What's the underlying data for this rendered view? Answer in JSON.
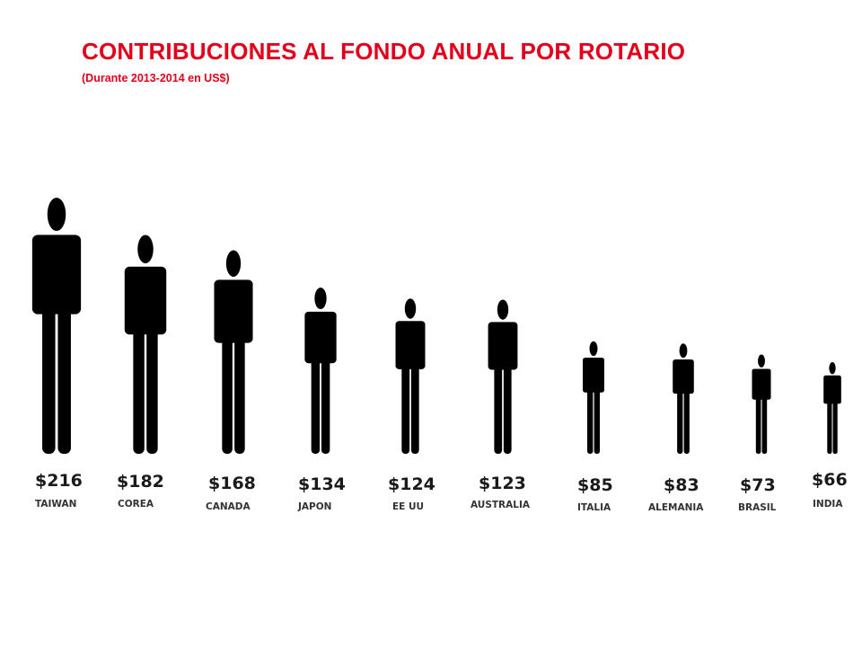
{
  "header": {
    "title": "CONTRIBUCIONES AL FONDO ANUAL POR ROTARIO",
    "subtitle": "(Durante 2013-2014 en US$)"
  },
  "colors": {
    "title": "#e3001b",
    "figure": "#000000",
    "label": "#1a1a1a"
  },
  "chart_data": {
    "type": "bar",
    "mark": "person-pictogram",
    "title": "CONTRIBUCIONES AL FONDO ANUAL POR ROTARIO",
    "subtitle": "(Durante 2013-2014 en US$)",
    "unit": "US$",
    "categories": [
      "TAIWAN",
      "COREA",
      "CANADA",
      "JAPON",
      "EE UU",
      "AUSTRALIA",
      "ITALIA",
      "ALEMANIA",
      "BRASIL",
      "INDIA"
    ],
    "values": [
      216,
      182,
      168,
      134,
      124,
      123,
      85,
      83,
      73,
      66
    ],
    "value_labels": [
      "$216",
      "$182",
      "$168",
      "$134",
      "$124",
      "$123",
      "$85",
      "$83",
      "$73",
      "$66"
    ],
    "grid": false,
    "legend": "none"
  }
}
